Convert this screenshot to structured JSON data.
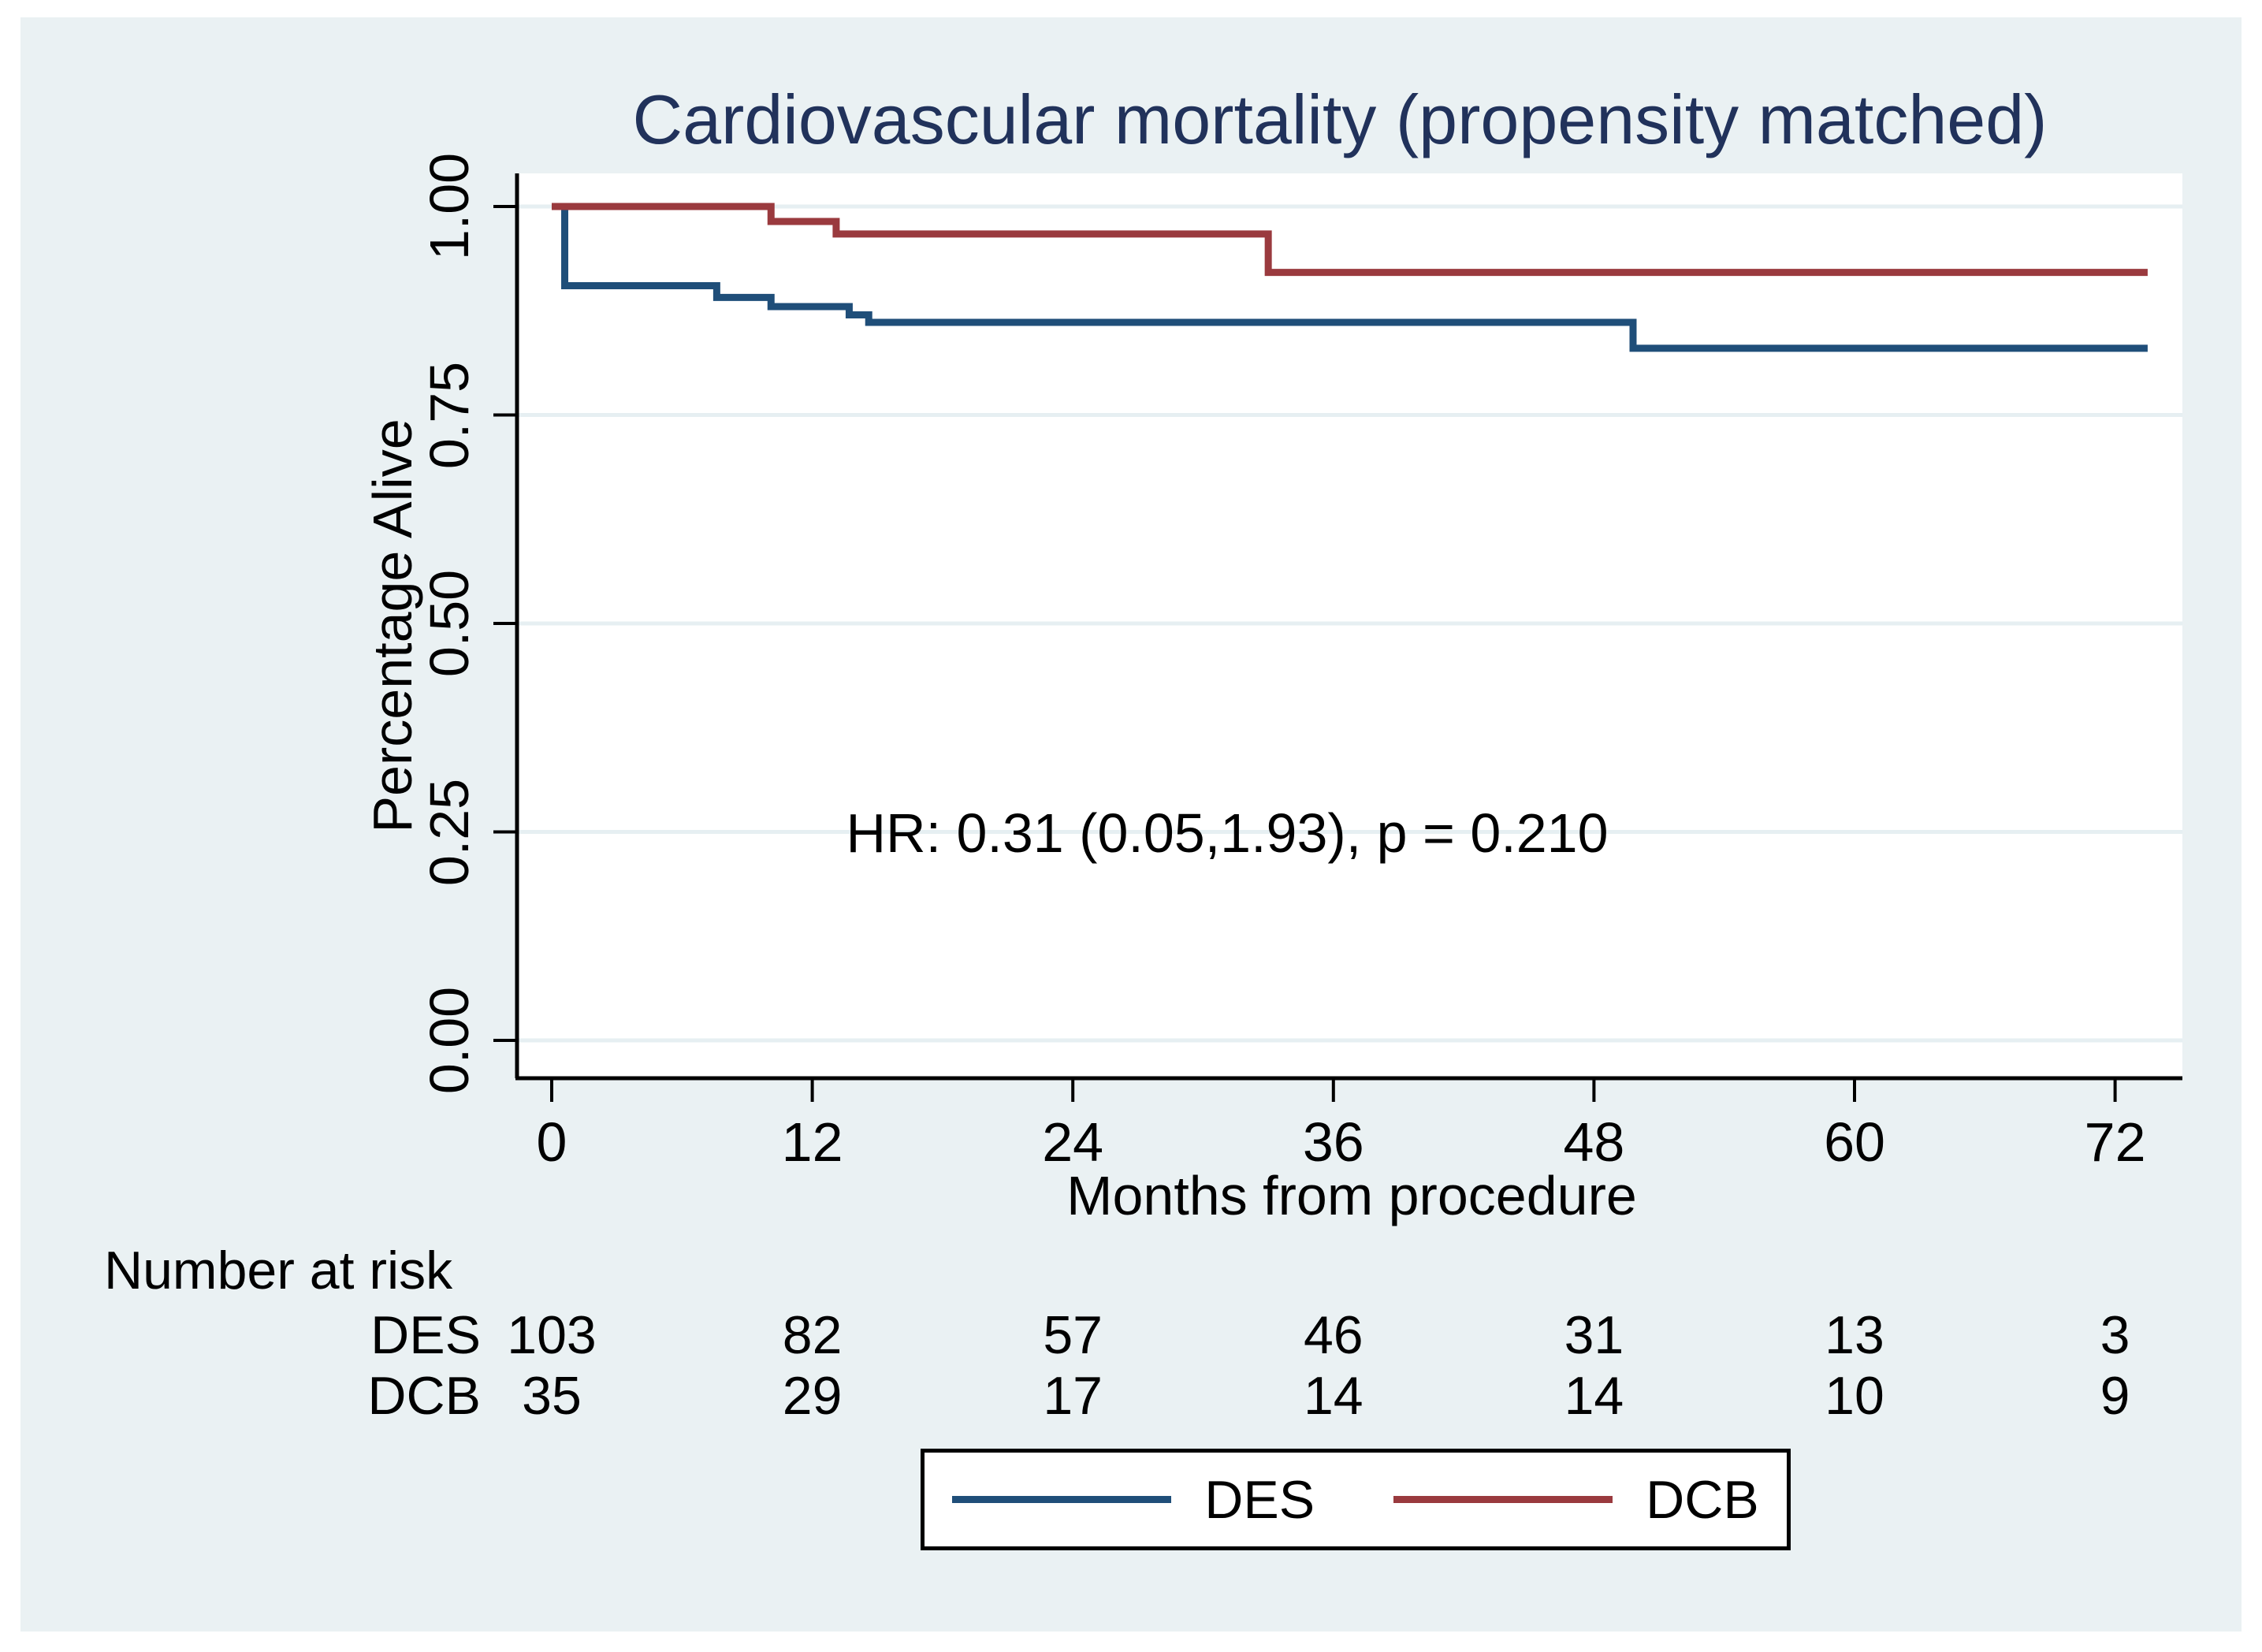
{
  "figure": {
    "background_color": "#eaf1f3",
    "plot_background_color": "#ffffff",
    "title_color": "#21325b",
    "gridline_color": "#e6eff2"
  },
  "chart_data": {
    "type": "line",
    "subtype": "kaplan_meier_step",
    "title": "Cardiovascular mortality (propensity matched)",
    "xlabel": "Months from procedure",
    "ylabel": "Percentage Alive",
    "annotation": "HR: 0.31 (0.05,1.93), p = 0.210",
    "xlim": [
      0,
      74
    ],
    "ylim": [
      0.0,
      1.0
    ],
    "grid": "horizontal",
    "legend_position": "bottom",
    "x_ticks": [
      {
        "value": 0,
        "label": "0"
      },
      {
        "value": 12,
        "label": "12"
      },
      {
        "value": 24,
        "label": "24"
      },
      {
        "value": 36,
        "label": "36"
      },
      {
        "value": 48,
        "label": "48"
      },
      {
        "value": 60,
        "label": "60"
      },
      {
        "value": 72,
        "label": "72"
      }
    ],
    "y_ticks": [
      {
        "value": 1.0,
        "label": "1.00"
      },
      {
        "value": 0.75,
        "label": "0.75"
      },
      {
        "value": 0.5,
        "label": "0.50"
      },
      {
        "value": 0.25,
        "label": "0.25"
      },
      {
        "value": 0.0,
        "label": "0.00"
      }
    ],
    "series": [
      {
        "name": "DES",
        "color": "#1f4e79",
        "points": [
          [
            0,
            1.0
          ],
          [
            0.6,
            1.0
          ],
          [
            0.6,
            0.905
          ],
          [
            7.6,
            0.905
          ],
          [
            7.6,
            0.891
          ],
          [
            10.1,
            0.891
          ],
          [
            10.1,
            0.88
          ],
          [
            13.7,
            0.88
          ],
          [
            13.7,
            0.87
          ],
          [
            14.6,
            0.87
          ],
          [
            14.6,
            0.861
          ],
          [
            49.8,
            0.861
          ],
          [
            49.8,
            0.83
          ],
          [
            73.5,
            0.83
          ]
        ]
      },
      {
        "name": "DCB",
        "color": "#9a3a3e",
        "points": [
          [
            0,
            1.0
          ],
          [
            10.1,
            1.0
          ],
          [
            10.1,
            0.982
          ],
          [
            13.1,
            0.982
          ],
          [
            13.1,
            0.967
          ],
          [
            33.0,
            0.967
          ],
          [
            33.0,
            0.921
          ],
          [
            73.5,
            0.921
          ]
        ]
      }
    ]
  },
  "risk_table": {
    "title": "Number at risk",
    "time_points": [
      0,
      12,
      24,
      36,
      48,
      60,
      72
    ],
    "rows": [
      {
        "label": "DES",
        "values": [
          "103",
          "82",
          "57",
          "46",
          "31",
          "13",
          "3"
        ]
      },
      {
        "label": "DCB",
        "values": [
          "35",
          "29",
          "17",
          "14",
          "14",
          "10",
          "9"
        ]
      }
    ]
  },
  "legend": {
    "items": [
      {
        "label": "DES",
        "color": "#1f4e79"
      },
      {
        "label": "DCB",
        "color": "#9a3a3e"
      }
    ]
  }
}
